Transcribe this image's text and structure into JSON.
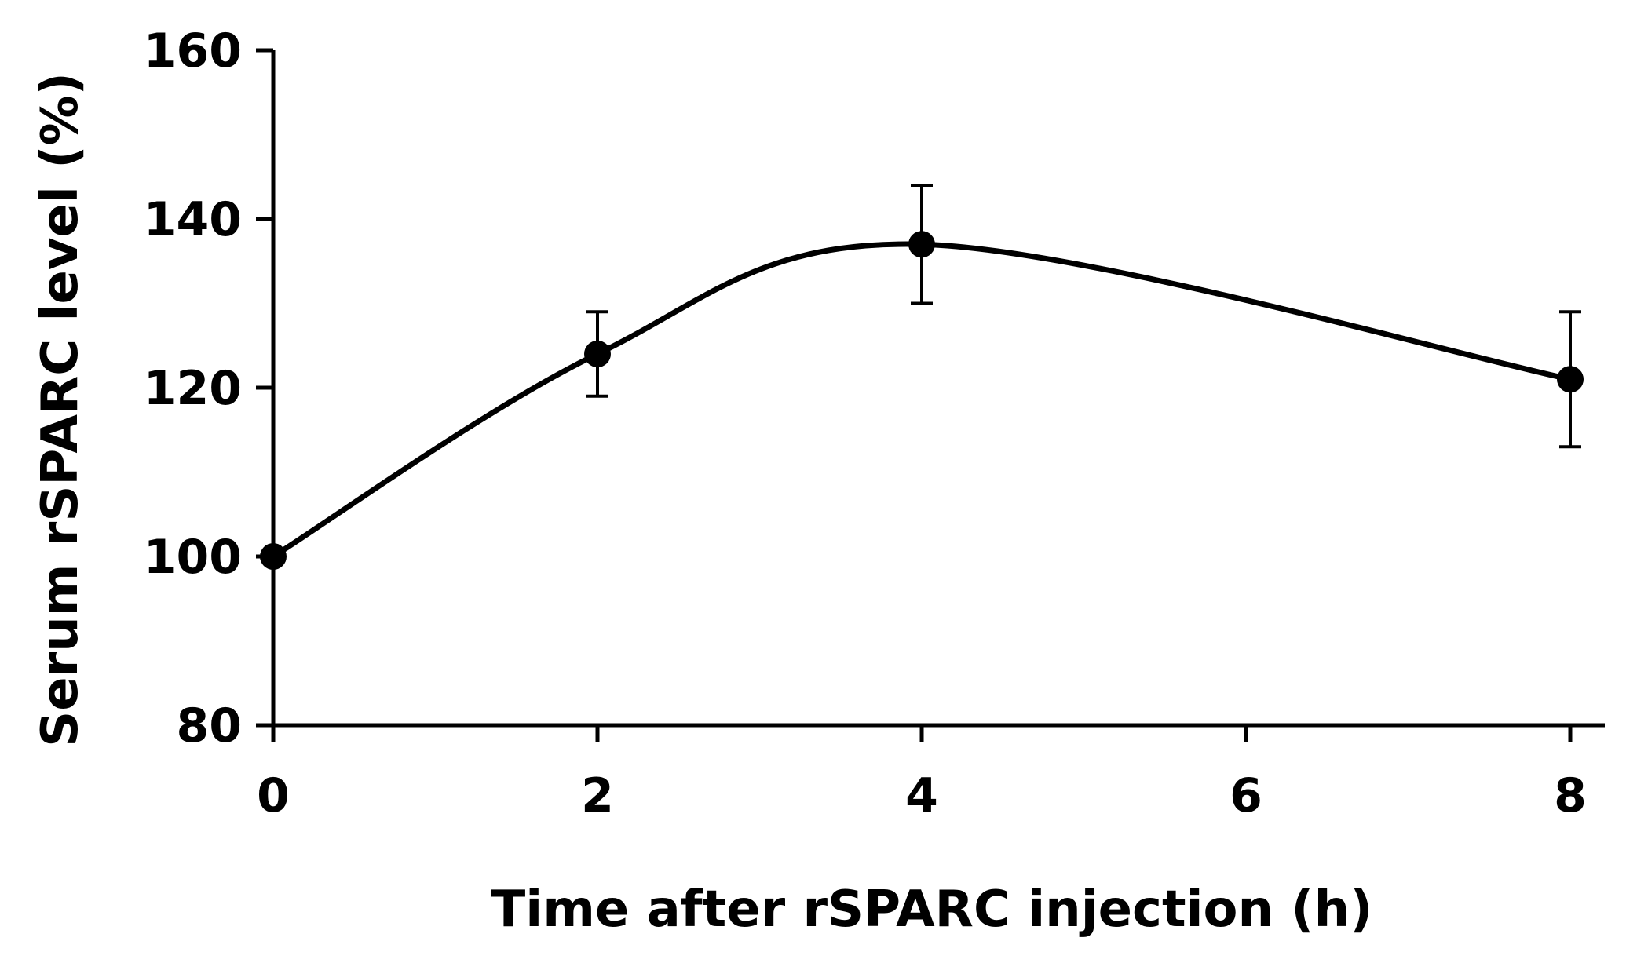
{
  "chart_data": {
    "type": "line",
    "title": "",
    "xlabel": "Time after rSPARC injection (h)",
    "ylabel": "Serum rSPARC level (%)",
    "xlim": [
      0,
      8
    ],
    "ylim": [
      80,
      160
    ],
    "x_ticks": [
      "0",
      "2",
      "4",
      "6",
      "8"
    ],
    "y_ticks": [
      "80",
      "100",
      "120",
      "140",
      "160"
    ],
    "grid": false,
    "legend": "none",
    "smooth": true,
    "series": [
      {
        "color": "#000000",
        "x": [
          0,
          2,
          4,
          8
        ],
        "y": [
          100,
          124,
          137,
          121
        ],
        "error": [
          0,
          5,
          7,
          8
        ]
      }
    ]
  }
}
